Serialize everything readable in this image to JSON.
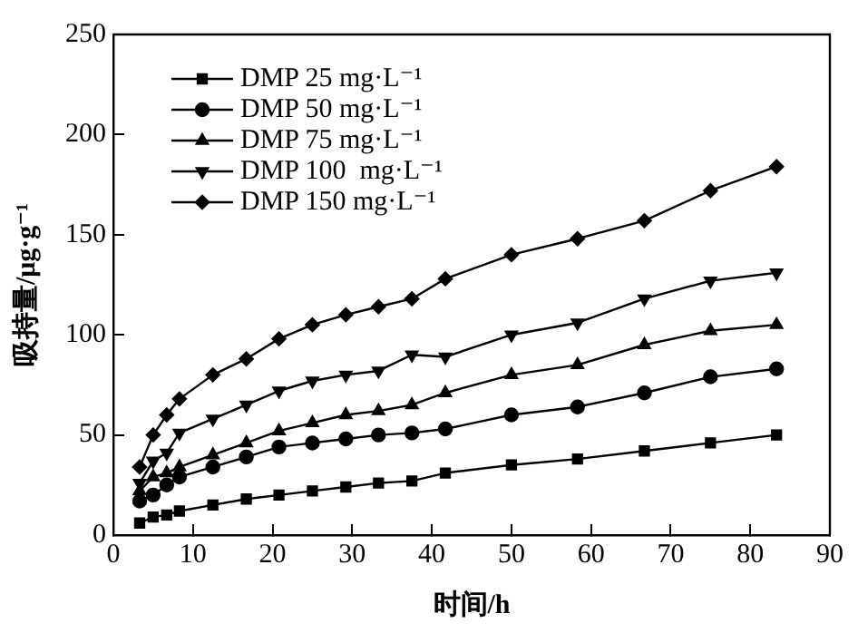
{
  "chart_data": {
    "type": "line",
    "xlabel": "时间/h",
    "ylabel": "吸持量/μg·g⁻¹",
    "x": [
      3.3,
      5,
      6.7,
      8.3,
      12.5,
      16.7,
      20.8,
      25,
      29.2,
      33.3,
      37.5,
      41.7,
      50,
      58.3,
      66.7,
      75,
      83.3
    ],
    "xlim": [
      0,
      90
    ],
    "xticks": [
      0,
      10,
      20,
      30,
      40,
      50,
      60,
      70,
      80,
      90
    ],
    "ylim": [
      0,
      250
    ],
    "yticks": [
      0,
      50,
      100,
      150,
      200,
      250
    ],
    "grid": false,
    "legend": "top left",
    "line_style": "solid",
    "series": [
      {
        "name": "DMP 25 mg·L⁻¹",
        "color": "#000000",
        "marker": "square",
        "values": [
          6,
          9,
          10,
          12,
          15,
          18,
          20,
          22,
          24,
          26,
          27,
          31,
          35,
          38,
          42,
          46,
          50
        ]
      },
      {
        "name": "DMP 50 mg·L⁻¹",
        "color": "#000000",
        "marker": "circle",
        "values": [
          17,
          20,
          25,
          29,
          34,
          39,
          44,
          46,
          48,
          50,
          51,
          53,
          60,
          64,
          71,
          79,
          83
        ]
      },
      {
        "name": "DMP 75 mg·L⁻¹",
        "color": "#000000",
        "marker": "triangle",
        "values": [
          22,
          29,
          31,
          34,
          40,
          46,
          52,
          56,
          60,
          62,
          65,
          71,
          80,
          85,
          95,
          102,
          105
        ]
      },
      {
        "name": "DMP 100  mg·L⁻¹",
        "color": "#000000",
        "marker": "triangle-down",
        "values": [
          26,
          37,
          41,
          51,
          58,
          65,
          72,
          77,
          80,
          82,
          90,
          89,
          100,
          106,
          118,
          127,
          131
        ]
      },
      {
        "name": "DMP 150 mg·L⁻¹",
        "color": "#000000",
        "marker": "diamond",
        "values": [
          34,
          50,
          60,
          68,
          80,
          88,
          98,
          105,
          110,
          114,
          118,
          128,
          140,
          148,
          157,
          172,
          184
        ]
      }
    ]
  }
}
